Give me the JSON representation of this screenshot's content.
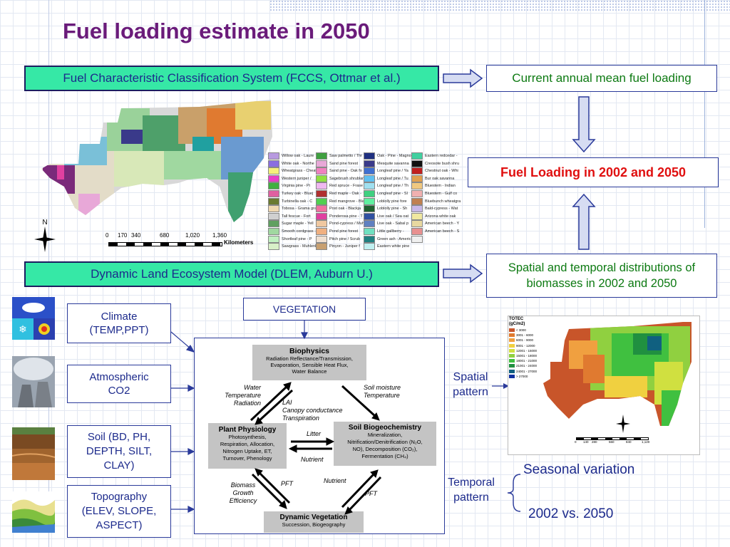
{
  "title": "Fuel loading estimate in 2050",
  "fccs_box": "Fuel Characteristic Classification System (FCCS, Ottmar et al.)",
  "current_box": "Current annual mean fuel loading",
  "fuel_loading_box": "Fuel Loading in 2002 and 2050",
  "dlem_box": "Dynamic Land Ecosystem Model (DLEM, Auburn U.)",
  "spatial_box": "Spatial and temporal distributions of biomasses in 2002 and 2050",
  "map_scale": {
    "ticks": [
      "0",
      "170",
      "340",
      "680",
      "1,020",
      "1,360"
    ],
    "unit": "Kilometers"
  },
  "compass_letter": "N",
  "legend": [
    {
      "label": "Willow oak - Laure",
      "color": "#b89ae0"
    },
    {
      "label": "White oak - Northe",
      "color": "#8a6ee0"
    },
    {
      "label": "Wheatgrass - Cheat",
      "color": "#f5f07a"
    },
    {
      "label": "Western juniper /",
      "color": "#e83ec8"
    },
    {
      "label": "Virginia pine - Pi",
      "color": "#40b040"
    },
    {
      "label": "Turkey oak - Bluej",
      "color": "#e060a0"
    },
    {
      "label": "Turbinella oak - C",
      "color": "#6a7a30"
    },
    {
      "label": "Tobosa - Grama gra",
      "color": "#f0d8b0"
    },
    {
      "label": "Tall fescue - Fort",
      "color": "#d0d0d0"
    },
    {
      "label": "Sugar maple - Yell",
      "color": "#60a060"
    },
    {
      "label": "Smooth cordgrass -",
      "color": "#a0d8a0"
    },
    {
      "label": "Shortleaf pine - P",
      "color": "#c0f0c0"
    },
    {
      "label": "Sawgrass - Muhlenb",
      "color": "#d8f0c8"
    },
    {
      "label": "Saw palmetto / Thr",
      "color": "#40a040"
    },
    {
      "label": "Sand pine forest",
      "color": "#e8a8d8"
    },
    {
      "label": "Sand pine - Oak fo",
      "color": "#f080c0"
    },
    {
      "label": "Sagebrush shrublan",
      "color": "#90e040"
    },
    {
      "label": "Red spruce - Frase",
      "color": "#f0b8f0"
    },
    {
      "label": "Red maple - Oak -",
      "color": "#b03030"
    },
    {
      "label": "Red mangrove - Bla",
      "color": "#50d050"
    },
    {
      "label": "Post oak - Blackja",
      "color": "#f070a0"
    },
    {
      "label": "Ponderosa pine - T",
      "color": "#e040a0"
    },
    {
      "label": "Pond-cypress / Muh",
      "color": "#f0c8a0"
    },
    {
      "label": "Pond pine forest",
      "color": "#f0b080"
    },
    {
      "label": "Pitch pine / Scrub",
      "color": "#f0e0d0"
    },
    {
      "label": "Pinyon - Juniper f",
      "color": "#c8a070"
    },
    {
      "label": "Oak - Pine - Magno",
      "color": "#203080"
    },
    {
      "label": "Mesquite savanna",
      "color": "#3a3a8a"
    },
    {
      "label": "Longleaf pine / Ya",
      "color": "#4070d0"
    },
    {
      "label": "Longleaf pine / Tu",
      "color": "#60c0f0"
    },
    {
      "label": "Longleaf pine / Th",
      "color": "#a0e0f0"
    },
    {
      "label": "Longleaf pine - Sl",
      "color": "#40d080"
    },
    {
      "label": "Loblolly pine fore",
      "color": "#60f0a0"
    },
    {
      "label": "Loblolly pine - Sh",
      "color": "#206030"
    },
    {
      "label": "Live oak / Sea oat",
      "color": "#3050a0"
    },
    {
      "label": "Live oak - Sabal p",
      "color": "#6080c0"
    },
    {
      "label": "Little gallberry -",
      "color": "#70e0c0"
    },
    {
      "label": "Green ash - Americ",
      "color": "#208080"
    },
    {
      "label": "Eastern white pine",
      "color": "#c0f0f0"
    },
    {
      "label": "Eastern redcedar -",
      "color": "#40d0a0"
    },
    {
      "label": "Creosote bush shru",
      "color": "#101010"
    },
    {
      "label": "Chestnut oak - Whi",
      "color": "#c02020"
    },
    {
      "label": "Bur oak savanna",
      "color": "#e0a050"
    },
    {
      "label": "Bluestem - Indian",
      "color": "#f0c880"
    },
    {
      "label": "Bluestem - Gulf co",
      "color": "#f0b0b0"
    },
    {
      "label": "Bluebunch wheatgra",
      "color": "#c08050"
    },
    {
      "label": "Bald-cypress - Wat",
      "color": "#c8b8e8"
    },
    {
      "label": "Arizona white oak",
      "color": "#f0e8a0"
    },
    {
      "label": "American beech - Y",
      "color": "#e8d8a0"
    },
    {
      "label": "American beech - S",
      "color": "#e89090"
    },
    {
      "label": "",
      "color": "#f0f0f0"
    }
  ],
  "drivers": [
    {
      "label": "Climate\n(TEMP,PPT)",
      "icon": "climate-icon"
    },
    {
      "label": "Atmospheric\nCO2",
      "icon": "power-plant-icon"
    },
    {
      "label": "Soil (BD, PH,\nDEPTH, SILT,\nCLAY)",
      "icon": "soil-profile-icon"
    },
    {
      "label": "Topography\n(ELEV, SLOPE,\nASPECT)",
      "icon": "topography-icon"
    }
  ],
  "vegetation_box": "VEGETATION",
  "model": {
    "biophysics_title": "Biophysics",
    "biophysics_text": "Radiation Reflectance/Transmission,\nEvaporation, Sensible Heat Flux,\nWater Balance",
    "plant_title": "Plant Physiology",
    "plant_text": "Photosynthesis,\nRespiration, Allocation,\nNitrogen Uptake, ET,\nTurnover, Phenology",
    "soil_title": "Soil Biogeochemistry",
    "soil_text": "Mineralization,\nNitrification/Denitrification (N₂O,\nNO), Decomposition (CO₂),\nFermentation (CH₄)",
    "dynveg_title": "Dynamic Vegetation",
    "dynveg_text": "Succession, Biogeography",
    "label_water": "Water\nTemperature\nRadiation",
    "label_lai": "LAI\nCanopy conductance\nTranspiration",
    "label_soil_moisture": "Soil moisture\nTemperature",
    "label_litter": "Litter",
    "label_nutrient_mid": "Nutrient",
    "label_biomass": "Biomass\nGrowth\nEfficiency",
    "label_pft_left": "PFT",
    "label_nutrient_low": "Nutrient",
    "label_pft_right": "PFT"
  },
  "spatial_pattern_label": "Spatial\npattern",
  "temporal_pattern_label": "Temporal\npattern",
  "seasonal_variation": "Seasonal variation",
  "year_comparison": "2002 vs. 2050",
  "totec_map": {
    "title": "TOTEC\n(gC/m2)",
    "legend": [
      {
        "label": "< 3000",
        "color": "#c8552a"
      },
      {
        "label": "3001 - 6000",
        "color": "#e07a30"
      },
      {
        "label": "6001 - 9000",
        "color": "#f0a040"
      },
      {
        "label": "9001 - 12000",
        "color": "#f0d040"
      },
      {
        "label": "12001 - 15000",
        "color": "#d0e040"
      },
      {
        "label": "15001 - 18000",
        "color": "#90d040"
      },
      {
        "label": "18001 - 21000",
        "color": "#40c040"
      },
      {
        "label": "21001 - 24000",
        "color": "#209040"
      },
      {
        "label": "24001 - 27000",
        "color": "#106080"
      },
      {
        "label": "> 27000",
        "color": "#1030a0"
      }
    ],
    "scale_ticks": [
      "0",
      "140",
      "280",
      "560",
      "840",
      "1,120"
    ]
  }
}
